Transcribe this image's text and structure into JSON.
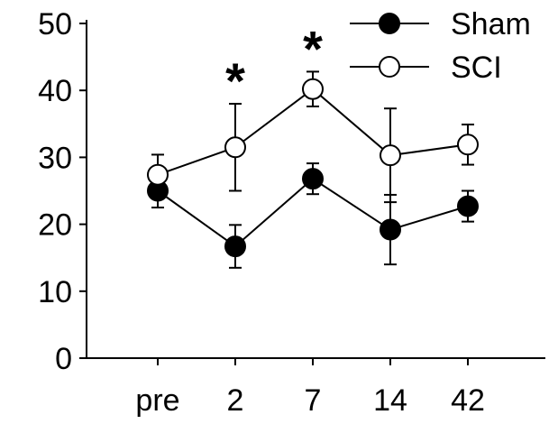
{
  "chart_data": {
    "type": "line",
    "title": "",
    "xlabel": "",
    "ylabel": "",
    "categories": [
      "pre",
      "2",
      "7",
      "14",
      "42"
    ],
    "ylim": [
      0,
      50
    ],
    "yticks": [
      "0",
      "10",
      "20",
      "30",
      "40",
      "50"
    ],
    "grid": false,
    "legend_position": "top-right",
    "series": [
      {
        "name": "Sham",
        "marker": "filled-circle",
        "color": "#000000",
        "values": [
          25,
          16.7,
          26.8,
          19.2,
          22.7
        ],
        "error": [
          2.5,
          3.2,
          2.3,
          5.2,
          2.3
        ]
      },
      {
        "name": "SCI",
        "marker": "open-circle",
        "color": "#000000",
        "values": [
          27.4,
          31.5,
          40.2,
          30.3,
          31.9
        ],
        "error": [
          3.0,
          6.5,
          2.6,
          7.0,
          3.0
        ]
      }
    ],
    "annotations": [
      {
        "category": "2",
        "text": "*"
      },
      {
        "category": "7",
        "text": "*"
      }
    ]
  }
}
